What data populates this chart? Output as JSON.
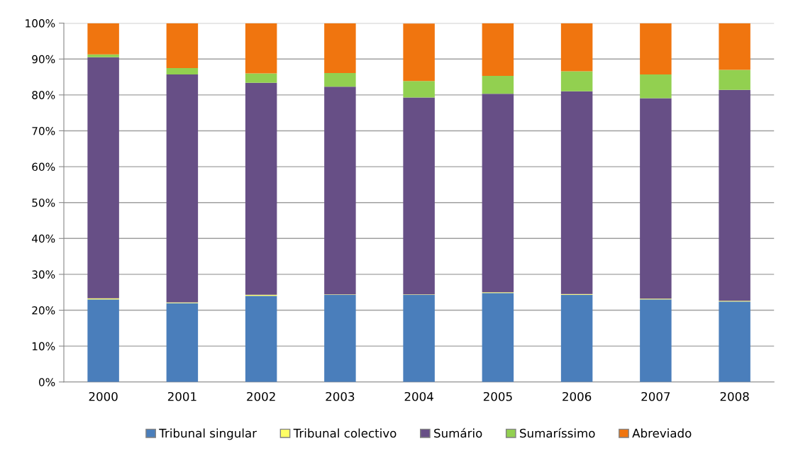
{
  "chart_data": {
    "type": "bar",
    "stacked": true,
    "categories": [
      "2000",
      "2001",
      "2002",
      "2003",
      "2004",
      "2005",
      "2006",
      "2007",
      "2008"
    ],
    "series": [
      {
        "name": "Tribunal singular",
        "color": "#4a7ebb",
        "values": [
          23.0,
          22.0,
          24.0,
          24.3,
          24.3,
          24.8,
          24.3,
          23.0,
          22.4
        ]
      },
      {
        "name": "Tribunal colectivo",
        "color": "#ffff66",
        "values": [
          0.3,
          0.2,
          0.3,
          0.1,
          0.1,
          0.2,
          0.2,
          0.2,
          0.2
        ]
      },
      {
        "name": "Sumário",
        "color": "#674f86",
        "values": [
          67.2,
          63.5,
          59.1,
          57.9,
          54.9,
          55.3,
          56.5,
          55.9,
          58.8
        ]
      },
      {
        "name": "Sumaríssimo",
        "color": "#92d050",
        "values": [
          0.8,
          1.8,
          2.6,
          3.8,
          4.6,
          5.0,
          5.6,
          6.6,
          5.6
        ]
      },
      {
        "name": "Abreviado",
        "color": "#f0750f",
        "values": [
          8.7,
          12.5,
          14.0,
          13.9,
          16.0,
          14.7,
          13.4,
          14.3,
          13.0
        ]
      }
    ],
    "ylim": [
      0,
      100
    ],
    "yticks": [
      {
        "value": 0,
        "label": "0%"
      },
      {
        "value": 10,
        "label": "10%"
      },
      {
        "value": 20,
        "label": "20%"
      },
      {
        "value": 30,
        "label": "30%"
      },
      {
        "value": 40,
        "label": "40%"
      },
      {
        "value": 50,
        "label": "50%"
      },
      {
        "value": 60,
        "label": "60%"
      },
      {
        "value": 70,
        "label": "70%"
      },
      {
        "value": 80,
        "label": "80%"
      },
      {
        "value": 90,
        "label": "90%"
      },
      {
        "value": 100,
        "label": "100%"
      }
    ],
    "grid": "y",
    "legend": "bottom"
  }
}
